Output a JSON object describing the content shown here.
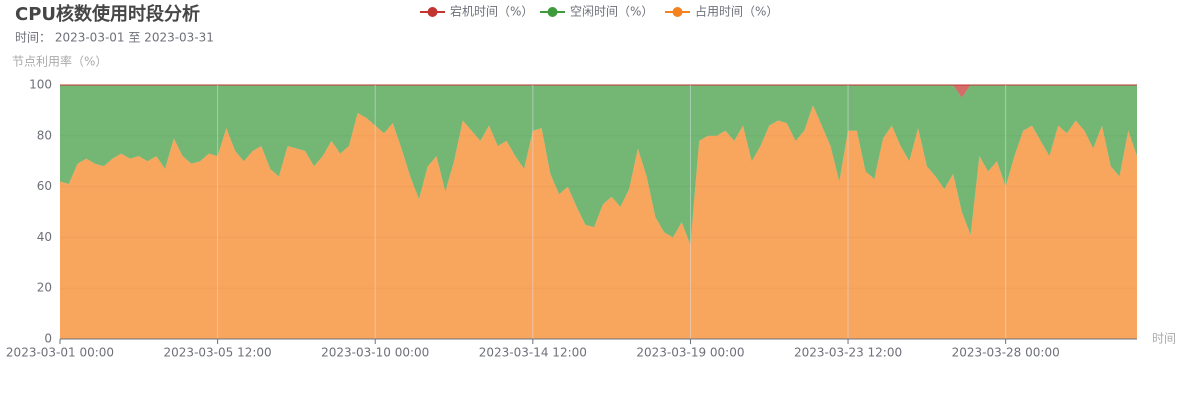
{
  "chart_data": {
    "type": "stacked_area",
    "title": "CPU核数使用时段分析",
    "subtitle": "时间： 2023-03-01 至 2023-03-31",
    "y_axis_label": "节点利用率（%）",
    "x_axis_label": "时间",
    "ylim": [
      0,
      100
    ],
    "yticks": [
      0,
      20,
      40,
      60,
      80,
      100
    ],
    "xlim": [
      "2023-03-01 00:00",
      "2023-03-31 18:00"
    ],
    "xticks": [
      "2023-03-01 00:00",
      "2023-03-05 12:00",
      "2023-03-10 00:00",
      "2023-03-14 12:00",
      "2023-03-19 00:00",
      "2023-03-23 12:00",
      "2023-03-28 00:00"
    ],
    "grid": true,
    "x": [
      "2023-03-01 00:00",
      "2023-03-01 06:00",
      "2023-03-01 12:00",
      "2023-03-01 18:00",
      "2023-03-02 00:00",
      "2023-03-02 06:00",
      "2023-03-02 12:00",
      "2023-03-02 18:00",
      "2023-03-03 00:00",
      "2023-03-03 06:00",
      "2023-03-03 12:00",
      "2023-03-03 18:00",
      "2023-03-04 00:00",
      "2023-03-04 06:00",
      "2023-03-04 12:00",
      "2023-03-04 18:00",
      "2023-03-05 00:00",
      "2023-03-05 06:00",
      "2023-03-05 12:00",
      "2023-03-05 18:00",
      "2023-03-06 00:00",
      "2023-03-06 06:00",
      "2023-03-06 12:00",
      "2023-03-06 18:00",
      "2023-03-07 00:00",
      "2023-03-07 06:00",
      "2023-03-07 12:00",
      "2023-03-07 18:00",
      "2023-03-08 00:00",
      "2023-03-08 06:00",
      "2023-03-08 12:00",
      "2023-03-08 18:00",
      "2023-03-09 00:00",
      "2023-03-09 06:00",
      "2023-03-09 12:00",
      "2023-03-09 18:00",
      "2023-03-10 00:00",
      "2023-03-10 06:00",
      "2023-03-10 12:00",
      "2023-03-10 18:00",
      "2023-03-11 00:00",
      "2023-03-11 06:00",
      "2023-03-11 12:00",
      "2023-03-11 18:00",
      "2023-03-12 00:00",
      "2023-03-12 06:00",
      "2023-03-12 12:00",
      "2023-03-12 18:00",
      "2023-03-13 00:00",
      "2023-03-13 06:00",
      "2023-03-13 12:00",
      "2023-03-13 18:00",
      "2023-03-14 00:00",
      "2023-03-14 06:00",
      "2023-03-14 12:00",
      "2023-03-14 18:00",
      "2023-03-15 00:00",
      "2023-03-15 06:00",
      "2023-03-15 12:00",
      "2023-03-15 18:00",
      "2023-03-16 00:00",
      "2023-03-16 06:00",
      "2023-03-16 12:00",
      "2023-03-16 18:00",
      "2023-03-17 00:00",
      "2023-03-17 06:00",
      "2023-03-17 12:00",
      "2023-03-17 18:00",
      "2023-03-18 00:00",
      "2023-03-18 06:00",
      "2023-03-18 12:00",
      "2023-03-18 18:00",
      "2023-03-19 00:00",
      "2023-03-19 06:00",
      "2023-03-19 12:00",
      "2023-03-19 18:00",
      "2023-03-20 00:00",
      "2023-03-20 06:00",
      "2023-03-20 12:00",
      "2023-03-20 18:00",
      "2023-03-21 00:00",
      "2023-03-21 06:00",
      "2023-03-21 12:00",
      "2023-03-21 18:00",
      "2023-03-22 00:00",
      "2023-03-22 06:00",
      "2023-03-22 12:00",
      "2023-03-22 18:00",
      "2023-03-23 00:00",
      "2023-03-23 06:00",
      "2023-03-23 12:00",
      "2023-03-23 18:00",
      "2023-03-24 00:00",
      "2023-03-24 06:00",
      "2023-03-24 12:00",
      "2023-03-24 18:00",
      "2023-03-25 00:00",
      "2023-03-25 06:00",
      "2023-03-25 12:00",
      "2023-03-25 18:00",
      "2023-03-26 00:00",
      "2023-03-26 06:00",
      "2023-03-26 12:00",
      "2023-03-26 18:00",
      "2023-03-27 00:00",
      "2023-03-27 06:00",
      "2023-03-27 12:00",
      "2023-03-27 18:00",
      "2023-03-28 00:00",
      "2023-03-28 06:00",
      "2023-03-28 12:00",
      "2023-03-28 18:00",
      "2023-03-29 00:00",
      "2023-03-29 06:00",
      "2023-03-29 12:00",
      "2023-03-29 18:00",
      "2023-03-30 00:00",
      "2023-03-30 06:00",
      "2023-03-30 12:00",
      "2023-03-30 18:00",
      "2023-03-31 00:00",
      "2023-03-31 06:00",
      "2023-03-31 12:00",
      "2023-03-31 18:00"
    ],
    "series": [
      {
        "name": "宕机时间（%）",
        "color": "#c23531",
        "values": [
          0,
          0,
          0,
          0,
          0,
          0,
          0,
          0,
          0,
          0,
          0,
          0,
          0,
          0,
          0,
          0,
          0,
          0,
          0,
          0,
          0,
          0,
          0,
          0,
          0,
          0,
          0,
          0,
          0,
          0,
          0,
          0,
          0,
          0,
          0,
          0,
          0,
          0,
          0,
          0,
          0,
          0,
          0,
          0,
          0,
          0,
          0,
          0,
          0,
          0,
          0,
          0,
          0,
          0,
          0,
          0,
          0,
          0,
          0,
          0,
          0,
          0,
          0,
          0,
          0,
          0,
          0,
          0,
          0,
          0,
          0,
          0,
          0,
          0,
          0,
          0,
          0,
          0,
          0,
          0,
          0,
          0,
          0,
          0,
          0,
          0,
          0,
          0,
          0,
          0,
          0,
          0,
          0,
          0,
          0,
          0,
          0,
          0,
          0,
          0,
          0,
          0,
          0,
          5,
          0,
          0,
          0,
          0,
          0,
          0,
          0,
          0,
          0,
          0,
          0,
          0,
          0,
          0,
          0,
          0,
          0,
          0,
          0,
          0
        ]
      },
      {
        "name": "空闲时间（%）",
        "color": "#3f9a3d",
        "values": [
          38,
          39,
          31,
          29,
          31,
          32,
          29,
          27,
          29,
          28,
          30,
          28,
          33,
          21,
          28,
          31,
          30,
          27,
          28,
          17,
          26,
          30,
          26,
          24,
          33,
          36,
          24,
          25,
          26,
          32,
          28,
          22,
          27,
          24,
          11,
          13,
          16,
          19,
          15,
          25,
          36,
          45,
          32,
          28,
          42,
          30,
          14,
          18,
          22,
          16,
          24,
          22,
          28,
          33,
          18,
          17,
          35,
          43,
          40,
          48,
          55,
          56,
          47,
          44,
          48,
          41,
          25,
          36,
          52,
          58,
          60,
          54,
          63,
          22,
          20,
          20,
          18,
          22,
          16,
          30,
          24,
          16,
          14,
          15,
          22,
          18,
          8,
          16,
          24,
          38,
          18,
          18,
          34,
          37,
          21,
          16,
          24,
          30,
          17,
          32,
          36,
          41,
          35,
          45,
          59,
          28,
          34,
          30,
          40,
          28,
          18,
          16,
          22,
          28,
          16,
          19,
          14,
          18,
          25,
          16,
          32,
          36,
          18,
          28
        ]
      },
      {
        "name": "占用时间（%）",
        "color": "#f5821f",
        "values": [
          62,
          61,
          69,
          71,
          69,
          68,
          71,
          73,
          71,
          72,
          70,
          72,
          67,
          79,
          72,
          69,
          70,
          73,
          72,
          83,
          74,
          70,
          74,
          76,
          67,
          64,
          76,
          75,
          74,
          68,
          72,
          78,
          73,
          76,
          89,
          87,
          84,
          81,
          85,
          75,
          64,
          55,
          68,
          72,
          58,
          70,
          86,
          82,
          78,
          84,
          76,
          78,
          72,
          67,
          82,
          83,
          65,
          57,
          60,
          52,
          45,
          44,
          53,
          56,
          52,
          59,
          75,
          64,
          48,
          42,
          40,
          46,
          37,
          78,
          80,
          80,
          82,
          78,
          84,
          70,
          76,
          84,
          86,
          85,
          78,
          82,
          92,
          84,
          76,
          62,
          82,
          82,
          66,
          63,
          79,
          84,
          76,
          70,
          83,
          68,
          64,
          59,
          65,
          50,
          41,
          72,
          66,
          70,
          60,
          72,
          82,
          84,
          78,
          72,
          84,
          81,
          86,
          82,
          75,
          84,
          68,
          64,
          82,
          72
        ]
      }
    ]
  }
}
